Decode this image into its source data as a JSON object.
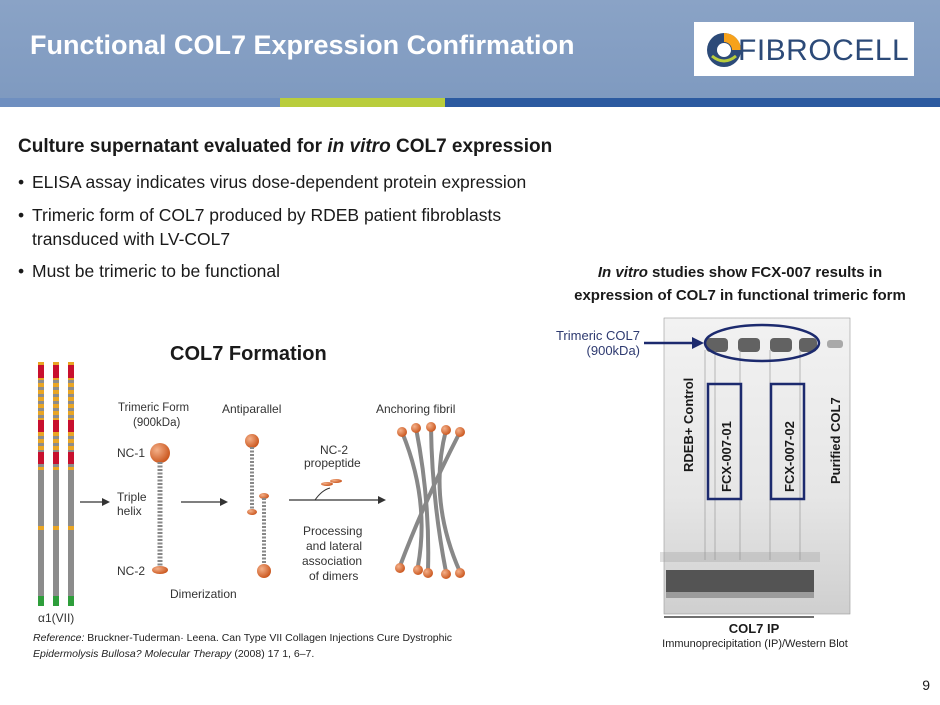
{
  "slide": {
    "title": "Functional COL7 Expression Confirmation",
    "logo_text": "FIBROCELL",
    "page_number": "9",
    "colors": {
      "header": "#7f9ac0",
      "stripe_blue_left": "#6f8fc0",
      "stripe_green": "#b9cd3c",
      "stripe_blue_right": "#2c5aa0",
      "annotation_navy": "#1c2a6e"
    }
  },
  "main": {
    "heading_prefix": "Culture supernatant evaluated for ",
    "heading_italic": "in vitro",
    "heading_suffix": " COL7 expression",
    "bullets": [
      {
        "text": "ELISA assay indicates virus dose-dependent protein expression"
      },
      {
        "text_line1": "Trimeric form of COL7 produced by RDEB patient fibroblasts",
        "text_line2": "transduced with LV-COL7"
      },
      {
        "text": "Must be trimeric to be functional"
      }
    ]
  },
  "gel": {
    "caption_italic": "In vitro",
    "caption_line1_rest": " studies show FCX-007 results in",
    "caption_line2": "expression of COL7 in functional trimeric form",
    "trimeric_label_1": "Trimeric COL7",
    "trimeric_label_2": "(900kDa)",
    "lanes": [
      "RDEB+ Control",
      "FCX-007-01",
      "FCX-007-02",
      "Purified COL7"
    ],
    "ip_label": "COL7 IP",
    "ip_sub": "Immunoprecipitation (IP)/Western Blot"
  },
  "diagram": {
    "title": "COL7 Formation",
    "trimeric_form": "Trimeric Form",
    "trimeric_kda": "(900kDa)",
    "antiparallel": "Antiparallel",
    "anchoring_fibril": "Anchoring fibril",
    "nc1": "NC-1",
    "nc2": "NC-2",
    "triple": "Triple",
    "helix": "helix",
    "nc2_prop_1": "NC-2",
    "nc2_prop_2": "propeptide",
    "processing_1": "Processing",
    "processing_2": "and lateral",
    "processing_3": "association",
    "processing_4": "of dimers",
    "dimerization": "Dimerization",
    "alpha_label": "α1(VII)"
  },
  "reference": {
    "label": "Reference:",
    "line1": " Bruckner-Tuderman· Leena. Can Type VII Collagen Injections Cure Dystrophic",
    "line2_italic": "Epidermolysis Bullosa? Molecular Therapy",
    "line2_rest": " (2008) 17 1, 6–7."
  }
}
